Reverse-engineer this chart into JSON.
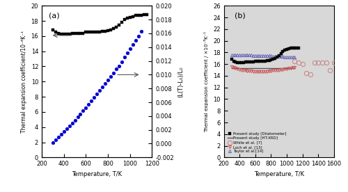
{
  "panel_a": {
    "ltec_temp": [
      300,
      325,
      350,
      375,
      400,
      425,
      450,
      475,
      500,
      525,
      550,
      575,
      600,
      625,
      650,
      675,
      700,
      725,
      750,
      775,
      800,
      825,
      850,
      875,
      900,
      925,
      950,
      975,
      1000,
      1025,
      1050,
      1075,
      1100,
      1125,
      1150
    ],
    "ltec_vals": [
      16.8,
      16.5,
      16.4,
      16.3,
      16.3,
      16.3,
      16.3,
      16.4,
      16.4,
      16.4,
      16.4,
      16.4,
      16.5,
      16.5,
      16.5,
      16.5,
      16.5,
      16.5,
      16.6,
      16.6,
      16.7,
      16.8,
      17.0,
      17.2,
      17.5,
      17.8,
      18.2,
      18.4,
      18.5,
      18.6,
      18.7,
      18.7,
      18.7,
      18.8,
      18.8
    ],
    "dL_temp": [
      300,
      325,
      350,
      375,
      400,
      425,
      450,
      475,
      500,
      525,
      550,
      575,
      600,
      625,
      650,
      675,
      700,
      725,
      750,
      775,
      800,
      825,
      850,
      875,
      900,
      925,
      950,
      975,
      1000,
      1025,
      1050,
      1075,
      1100
    ],
    "dL_vals": [
      0.0002,
      0.0006,
      0.001,
      0.0014,
      0.0018,
      0.0022,
      0.0026,
      0.003,
      0.0034,
      0.0039,
      0.0043,
      0.0048,
      0.0052,
      0.0057,
      0.0062,
      0.0067,
      0.0072,
      0.0077,
      0.0082,
      0.0087,
      0.0092,
      0.0097,
      0.0102,
      0.0108,
      0.0113,
      0.0119,
      0.0126,
      0.0132,
      0.0138,
      0.0144,
      0.015,
      0.0156,
      0.0163
    ],
    "xlim": [
      200,
      1200
    ],
    "ylim_left": [
      0,
      20
    ],
    "ylim_right": [
      -0.002,
      0.02
    ],
    "yticks_left": [
      0,
      2,
      4,
      6,
      8,
      10,
      12,
      14,
      16,
      18,
      20
    ],
    "yticks_right": [
      -0.002,
      0.0,
      0.002,
      0.004,
      0.006,
      0.008,
      0.01,
      0.012,
      0.014,
      0.016,
      0.018,
      0.02
    ],
    "xticks": [
      200,
      400,
      600,
      800,
      1000,
      1200
    ],
    "xlabel": "Temperature, T/K",
    "ylabel_left": "Thermal expansion coefficient/10⁻⁶K⁻¹",
    "ylabel_right": "(L(T)-L₀)/L₀",
    "label": "(a)"
  },
  "panel_b": {
    "dilatometer_temp": [
      300,
      325,
      350,
      375,
      400,
      425,
      450,
      475,
      500,
      525,
      550,
      575,
      600,
      625,
      650,
      675,
      700,
      725,
      750,
      775,
      800,
      825,
      850,
      875,
      900,
      925,
      950,
      975,
      1000,
      1025,
      1050,
      1075,
      1100,
      1125,
      1150
    ],
    "dilatometer_vals": [
      16.8,
      16.5,
      16.4,
      16.3,
      16.3,
      16.3,
      16.3,
      16.4,
      16.4,
      16.4,
      16.4,
      16.4,
      16.5,
      16.5,
      16.5,
      16.5,
      16.5,
      16.5,
      16.6,
      16.6,
      16.7,
      16.8,
      17.0,
      17.2,
      17.5,
      17.8,
      18.2,
      18.4,
      18.5,
      18.6,
      18.7,
      18.7,
      18.7,
      18.8,
      18.8
    ],
    "htxrd_line_x": [
      300,
      1100
    ],
    "htxrd_line_y": [
      15.3,
      15.3
    ],
    "white_temp": [
      1100,
      1150,
      1200,
      1250,
      1300,
      1350,
      1400,
      1450,
      1500,
      1550,
      1600
    ],
    "white_vals": [
      16.5,
      16.3,
      16.0,
      14.5,
      14.2,
      16.2,
      16.2,
      16.3,
      16.2,
      15.0,
      16.2
    ],
    "loch_temp": [
      300,
      325,
      350,
      375,
      400,
      425,
      450,
      475,
      500,
      525,
      550,
      575,
      600,
      625,
      650,
      675,
      700,
      725,
      750,
      775,
      800,
      825,
      850,
      875,
      900,
      925,
      950,
      975,
      1000,
      1025,
      1050,
      1075,
      1100
    ],
    "loch_vals": [
      15.5,
      15.4,
      15.3,
      15.2,
      15.1,
      15.0,
      14.9,
      14.9,
      14.8,
      14.8,
      14.8,
      14.7,
      14.7,
      14.7,
      14.7,
      14.7,
      14.7,
      14.7,
      14.7,
      14.8,
      14.8,
      14.9,
      14.9,
      15.0,
      15.0,
      15.1,
      15.1,
      15.2,
      15.2,
      15.3,
      15.3,
      15.4,
      15.4
    ],
    "taylor_temp": [
      300,
      325,
      350,
      375,
      400,
      425,
      450,
      475,
      500,
      525,
      550,
      575,
      600,
      625,
      650,
      675,
      700,
      725,
      750,
      775,
      800,
      825,
      850,
      875,
      900,
      925,
      950,
      975,
      1000,
      1025,
      1050,
      1075,
      1100
    ],
    "taylor_vals": [
      17.6,
      17.6,
      17.6,
      17.6,
      17.6,
      17.6,
      17.6,
      17.6,
      17.6,
      17.6,
      17.6,
      17.5,
      17.5,
      17.5,
      17.5,
      17.5,
      17.5,
      17.4,
      17.4,
      17.4,
      17.4,
      17.3,
      17.3,
      17.3,
      17.3,
      17.3,
      17.3,
      17.2,
      17.2,
      17.2,
      17.2,
      17.2,
      17.2
    ],
    "xlim": [
      200,
      1600
    ],
    "ylim": [
      0,
      26
    ],
    "yticks": [
      0,
      2,
      4,
      6,
      8,
      10,
      12,
      14,
      16,
      18,
      20,
      22,
      24,
      26
    ],
    "xticks": [
      200,
      400,
      600,
      800,
      1000,
      1200,
      1400,
      1600
    ],
    "xlabel": "Temperature, T/K",
    "ylabel": "Thermal expansion coefficient / ×10⁻⁶K⁻¹",
    "label": "(b)",
    "bg_color": "#d8d8d8"
  }
}
